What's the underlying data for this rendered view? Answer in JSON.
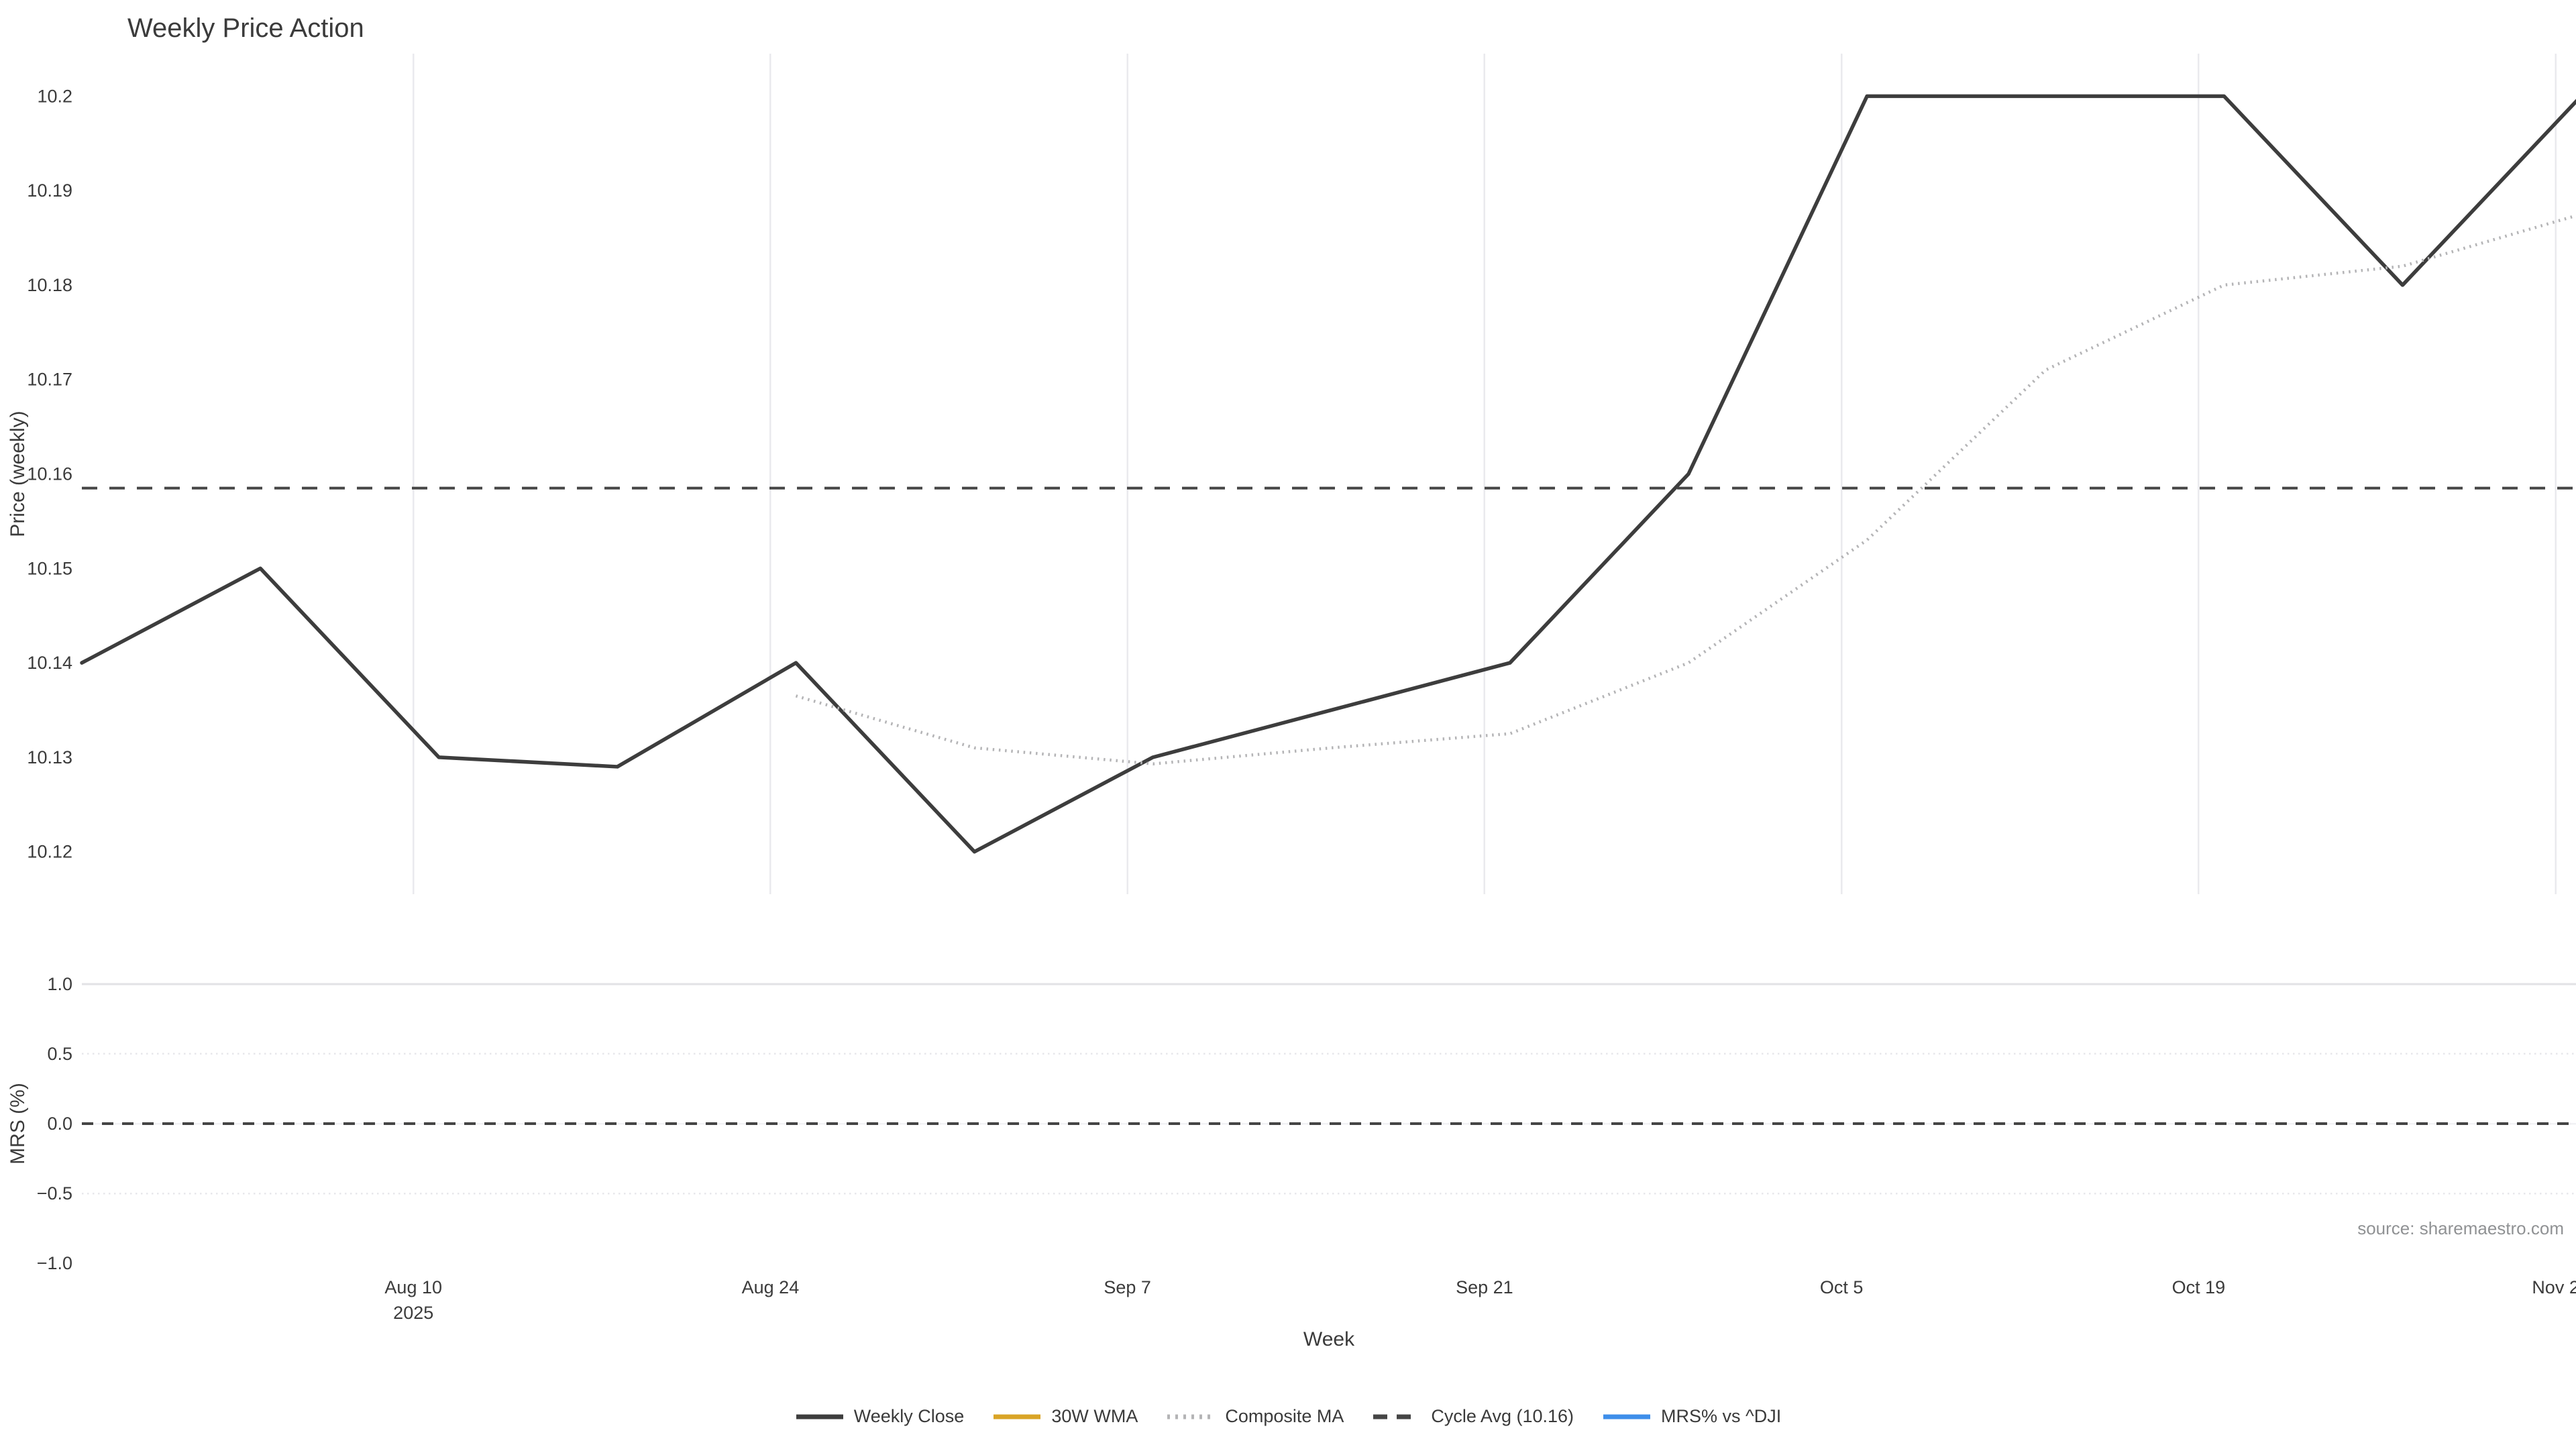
{
  "page": {
    "title": "Weekly Price Action"
  },
  "source_note": "source: sharemaestro.com",
  "axes": {
    "price_ylabel": "Price (weekly)",
    "mrs_ylabel": "MRS (%)",
    "xlabel": "Week"
  },
  "colors": {
    "weekly_close": "#3d3d3d",
    "wma_30w": "#D9A426",
    "composite_ma": "#b4b4b6",
    "cycle_avg": "#454545",
    "mrs_line": "#3E8EEA",
    "grid_vertical": "#eaeaee",
    "grid_major": "#e2e2e6",
    "grid_minor": "#e7e7eb",
    "grid_faint": "#f1f1f4",
    "tick_text": "#3b3b3b",
    "muted_text": "#909294"
  },
  "legend": {
    "items": [
      {
        "label": "Weekly Close",
        "style": "solid",
        "color_key": "weekly_close"
      },
      {
        "label": "30W WMA",
        "style": "solid",
        "color_key": "wma_30w"
      },
      {
        "label": "Composite MA",
        "style": "dotted",
        "color_key": "composite_ma"
      },
      {
        "label": "Cycle Avg (10.16)",
        "style": "dashed",
        "color_key": "cycle_avg"
      },
      {
        "label": "MRS% vs ^DJI",
        "style": "solid",
        "color_key": "mrs_line"
      }
    ]
  },
  "chart_data": [
    {
      "type": "line",
      "panel": "price",
      "title": "Weekly Price Action",
      "ylabel": "Price (weekly)",
      "ylim": [
        10.1155,
        10.2045
      ],
      "yticks": [
        {
          "v": 10.12,
          "label": "10.12"
        },
        {
          "v": 10.13,
          "label": "10.13"
        },
        {
          "v": 10.14,
          "label": "10.14"
        },
        {
          "v": 10.15,
          "label": "10.15"
        },
        {
          "v": 10.16,
          "label": "10.16"
        },
        {
          "v": 10.17,
          "label": "10.17"
        },
        {
          "v": 10.18,
          "label": "10.18"
        },
        {
          "v": 10.19,
          "label": "10.19"
        },
        {
          "v": 10.2,
          "label": "10.2"
        }
      ],
      "xlim_days": [
        0,
        97.8
      ],
      "xticks": [
        {
          "day": 13,
          "lines": [
            "Aug 10",
            "2025"
          ]
        },
        {
          "day": 27,
          "lines": [
            "Aug 24"
          ]
        },
        {
          "day": 41,
          "lines": [
            "Sep 7"
          ]
        },
        {
          "day": 55,
          "lines": [
            "Sep 21"
          ]
        },
        {
          "day": 69,
          "lines": [
            "Oct 5"
          ]
        },
        {
          "day": 83,
          "lines": [
            "Oct 19"
          ]
        },
        {
          "day": 97,
          "lines": [
            "Nov 2"
          ]
        }
      ],
      "series": [
        {
          "name": "Weekly Close",
          "color_key": "weekly_close",
          "style": "solid",
          "width": 5.5,
          "x_days": [
            0,
            7,
            14,
            21,
            28,
            35,
            42,
            49,
            56,
            63,
            70,
            77,
            84,
            91,
            98
          ],
          "values": [
            10.14,
            10.15,
            10.13,
            10.129,
            10.14,
            10.12,
            10.13,
            10.135,
            10.14,
            10.16,
            10.2,
            10.2,
            10.2,
            10.18,
            10.2
          ]
        },
        {
          "name": "30W WMA",
          "color_key": "wma_30w",
          "style": "solid",
          "width": 5,
          "x_days": [],
          "values": []
        },
        {
          "name": "Composite MA",
          "color_key": "composite_ma",
          "style": "dotted",
          "width": 4.5,
          "x_days": [
            28,
            35,
            42,
            49,
            56,
            63,
            70,
            77,
            84,
            91,
            98
          ],
          "values": [
            10.1365,
            10.131,
            10.1293,
            10.131,
            10.1325,
            10.14,
            10.153,
            10.171,
            10.18,
            10.182,
            10.1875
          ]
        },
        {
          "name": "Cycle Avg",
          "color_key": "cycle_avg",
          "style": "dashed",
          "width": 4,
          "constant": 10.1585
        }
      ]
    },
    {
      "type": "line",
      "panel": "mrs",
      "ylabel": "MRS (%)",
      "ylim": [
        -1.057,
        1.057
      ],
      "yticks": [
        {
          "v": 1.0,
          "label": "1.0",
          "grid": "major"
        },
        {
          "v": 0.5,
          "label": "0.5",
          "grid": "minor"
        },
        {
          "v": 0.0,
          "label": "0.0",
          "grid": "faint"
        },
        {
          "v": -0.5,
          "label": "−0.5",
          "grid": "minor"
        },
        {
          "v": -1.0,
          "label": "−1.0",
          "grid": "none"
        }
      ],
      "zero_line": {
        "value": 0.0,
        "style": "dashed",
        "color_key": "cycle_avg",
        "width": 4
      },
      "series": [
        {
          "name": "MRS% vs ^DJI",
          "color_key": "mrs_line",
          "style": "solid",
          "width": 5,
          "x_days": [],
          "values": []
        }
      ]
    }
  ]
}
